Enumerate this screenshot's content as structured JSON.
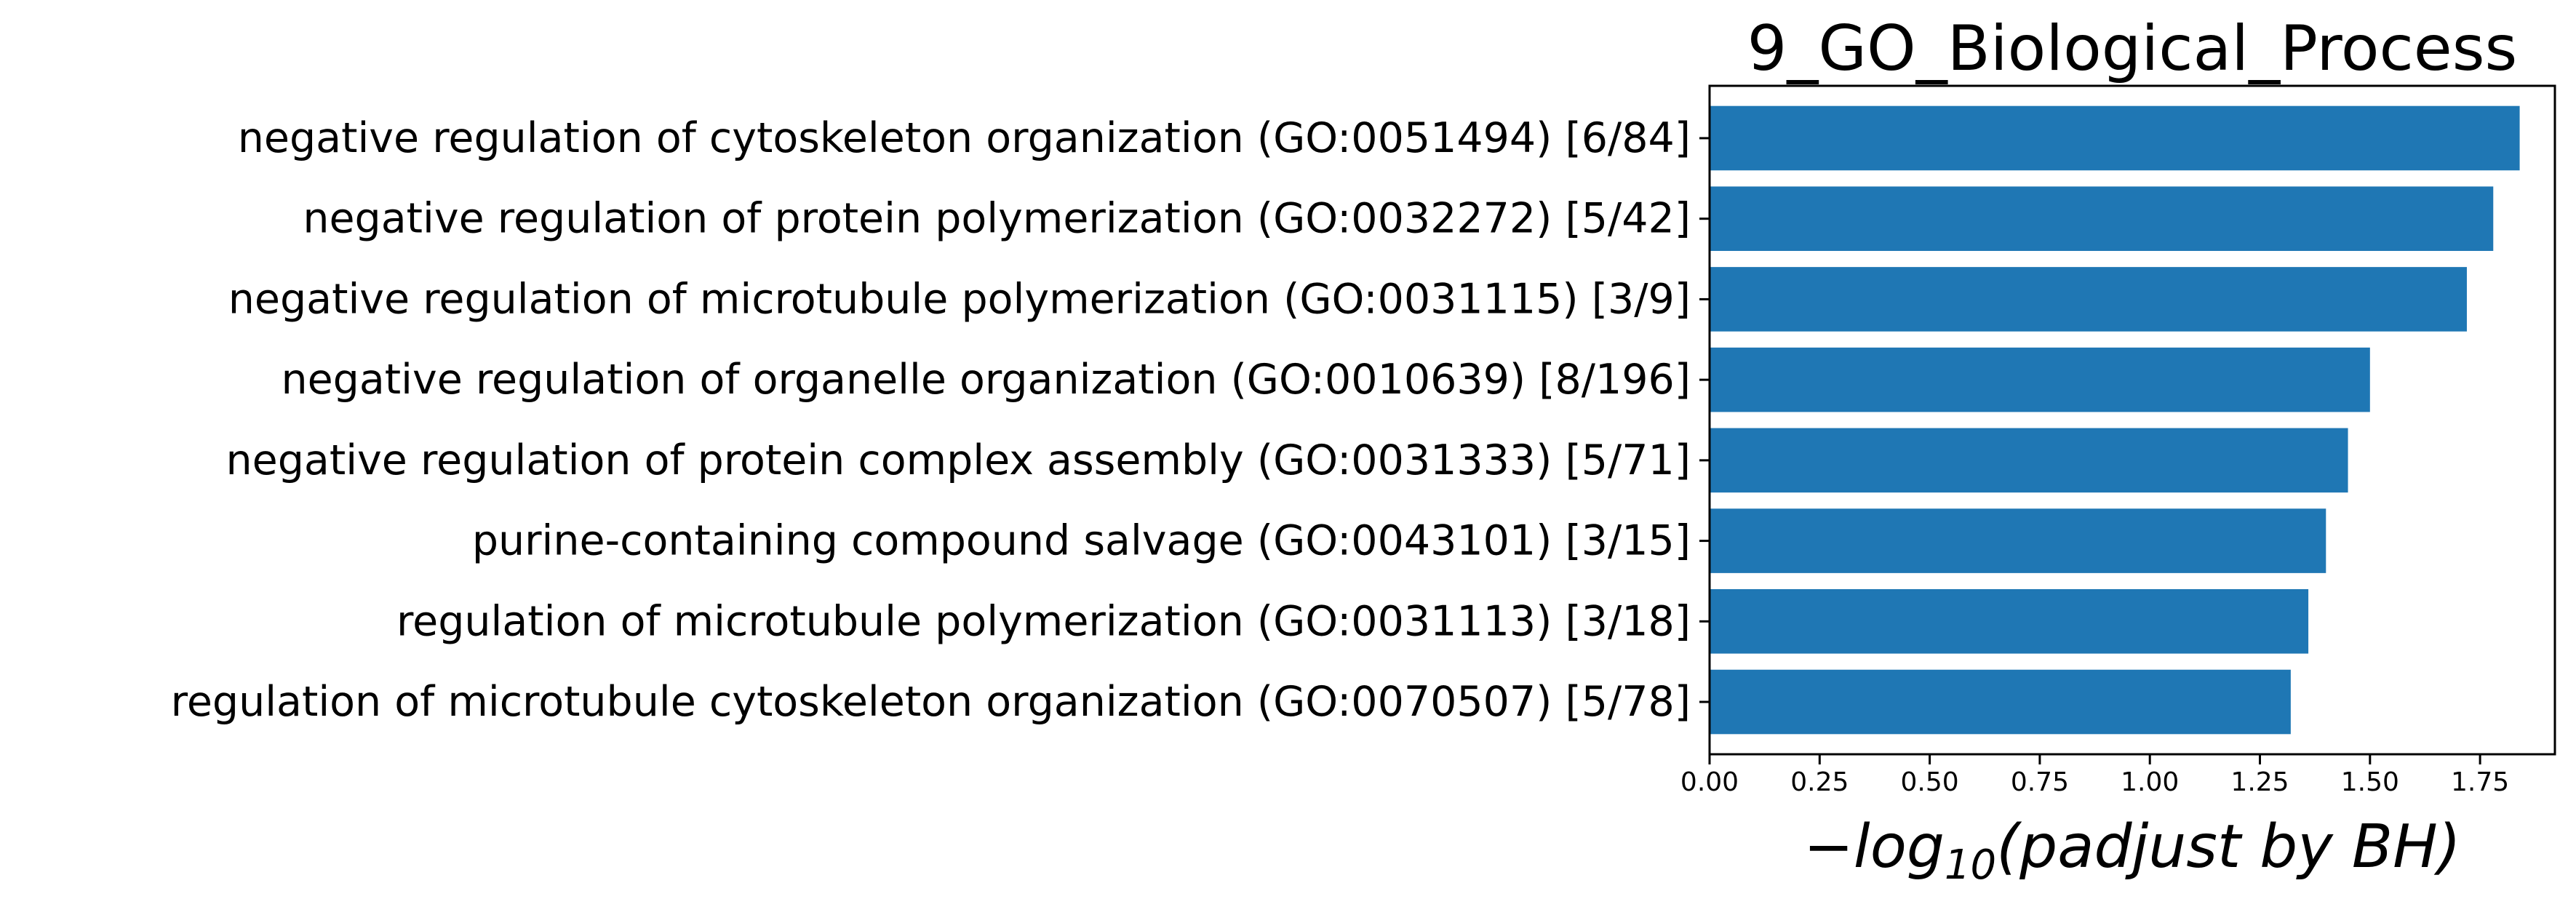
{
  "chart_data": {
    "type": "bar",
    "orientation": "horizontal",
    "title": "9_GO_Biological_Process",
    "xlabel": {
      "prefix": "−log",
      "subscript": "10",
      "suffix": "(padjust by BH)"
    },
    "ylabel": "",
    "xlim": [
      0,
      1.92
    ],
    "xticks": [
      0.0,
      0.25,
      0.5,
      0.75,
      1.0,
      1.25,
      1.5,
      1.75
    ],
    "xtick_labels": [
      "0.00",
      "0.25",
      "0.50",
      "0.75",
      "1.00",
      "1.25",
      "1.50",
      "1.75"
    ],
    "grid": false,
    "legend": "none",
    "bar_color": "#1f77b4",
    "categories": [
      "negative regulation of cytoskeleton organization (GO:0051494) [6/84]",
      "negative regulation of protein polymerization (GO:0032272) [5/42]",
      "negative regulation of microtubule polymerization (GO:0031115) [3/9]",
      "negative regulation of organelle organization (GO:0010639) [8/196]",
      "negative regulation of protein complex assembly (GO:0031333) [5/71]",
      "purine-containing compound salvage (GO:0043101) [3/15]",
      "regulation of microtubule polymerization (GO:0031113) [3/18]",
      "regulation of microtubule cytoskeleton organization (GO:0070507) [5/78]"
    ],
    "values": [
      1.84,
      1.78,
      1.72,
      1.5,
      1.45,
      1.4,
      1.36,
      1.32
    ]
  }
}
